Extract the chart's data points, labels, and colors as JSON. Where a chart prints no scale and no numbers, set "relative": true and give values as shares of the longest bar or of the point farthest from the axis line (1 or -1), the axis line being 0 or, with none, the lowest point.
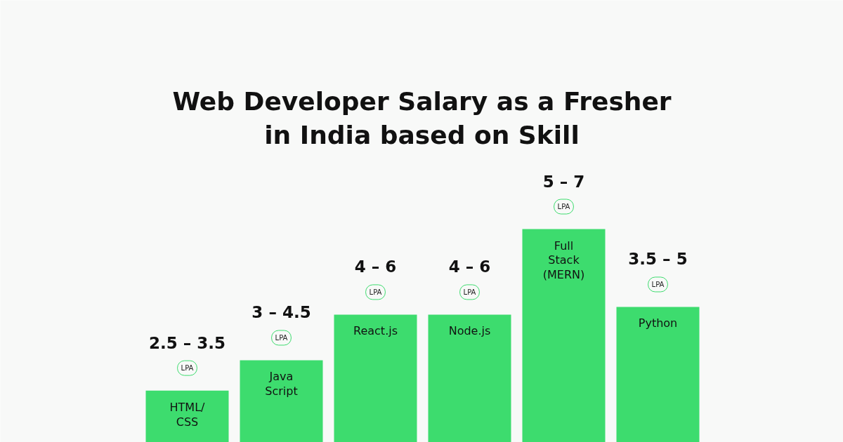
{
  "chart_data": {
    "type": "bar",
    "title": "Web Developer Salary as a Fresher\nin India based on Skill",
    "relative": true,
    "categories": [
      "HTML/\nCSS",
      "Java\nScript",
      "React.js",
      "Node.js",
      "Full\nStack\n(MERN)",
      "Python"
    ],
    "values": [
      0.243,
      0.385,
      0.599,
      0.599,
      1,
      0.635
    ],
    "color": "#3ddc6e",
    "annotations": [
      "2.5 – 3.5",
      "LPA",
      "3 – 4.5",
      "LPA",
      "4 – 6",
      "LPA",
      "4 – 6",
      "LPA",
      "5 – 7",
      "LPA",
      "3.5 – 5",
      "LPA"
    ]
  }
}
